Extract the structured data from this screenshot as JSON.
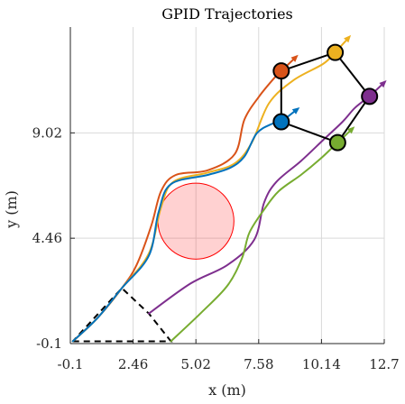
{
  "chart_data": {
    "type": "line",
    "title": "GPID Trajectories",
    "xlabel": "x (m)",
    "ylabel": "y (m)",
    "xlim": [
      -0.1,
      12.7
    ],
    "ylim": [
      -0.1,
      13.6
    ],
    "xticks": [
      -0.1,
      2.46,
      5.02,
      7.58,
      10.14,
      12.7
    ],
    "xtick_labels": [
      "-0.1",
      "2.46",
      "5.02",
      "7.58",
      "10.14",
      "12.7"
    ],
    "yticks": [
      -0.1,
      4.46,
      9.02
    ],
    "ytick_labels": [
      "-0.1",
      "4.46",
      "9.02"
    ],
    "grid": true,
    "legend": "none",
    "series": [
      {
        "color": "#d95319",
        "points": [
          [
            0,
            0
          ],
          [
            1,
            1
          ],
          [
            2,
            2.3
          ],
          [
            2.6,
            3.3
          ],
          [
            3.2,
            5
          ],
          [
            3.6,
            6.5
          ],
          [
            4.2,
            7.2
          ],
          [
            5.5,
            7.4
          ],
          [
            6.6,
            8.1
          ],
          [
            7,
            9.6
          ],
          [
            7.6,
            10.6
          ],
          [
            8.3,
            11.5
          ],
          [
            8.5,
            11.7
          ]
        ],
        "agent": [
          8.5,
          11.7
        ],
        "heading": [
          0.6,
          0.6
        ]
      },
      {
        "color": "#edb120",
        "points": [
          [
            0,
            0
          ],
          [
            1,
            1
          ],
          [
            2,
            2.3
          ],
          [
            3.1,
            3.8
          ],
          [
            3.6,
            5.8
          ],
          [
            4.1,
            6.9
          ],
          [
            5.5,
            7.3
          ],
          [
            6.6,
            7.7
          ],
          [
            7.3,
            8.6
          ],
          [
            8,
            10.3
          ],
          [
            9,
            11.3
          ],
          [
            10.2,
            12
          ],
          [
            10.7,
            12.5
          ]
        ],
        "agent": [
          10.7,
          12.5
        ],
        "heading": [
          0.6,
          0.7
        ]
      },
      {
        "color": "#0072bd",
        "points": [
          [
            0,
            0
          ],
          [
            1,
            1
          ],
          [
            2,
            2.3
          ],
          [
            3.1,
            3.7
          ],
          [
            3.5,
            5.6
          ],
          [
            4,
            6.8
          ],
          [
            5.5,
            7.2
          ],
          [
            6.4,
            7.5
          ],
          [
            7,
            8
          ],
          [
            7.5,
            9
          ],
          [
            8.1,
            9.4
          ],
          [
            8.5,
            9.5
          ]
        ],
        "agent": [
          8.5,
          9.5
        ],
        "heading": [
          0.6,
          0.5
        ]
      },
      {
        "color": "#7e2f8e",
        "points": [
          [
            3.1,
            1.2
          ],
          [
            4.8,
            2.5
          ],
          [
            6.3,
            3.3
          ],
          [
            7.4,
            4.4
          ],
          [
            7.8,
            6
          ],
          [
            8.3,
            6.9
          ],
          [
            9.3,
            7.8
          ],
          [
            10.2,
            8.7
          ],
          [
            11,
            9.5
          ],
          [
            11.5,
            10.1
          ],
          [
            12.1,
            10.6
          ]
        ],
        "agent": [
          12.1,
          10.6
        ],
        "heading": [
          0.55,
          0.55
        ]
      },
      {
        "color": "#77ac30",
        "points": [
          [
            4,
            0
          ],
          [
            5.2,
            1.2
          ],
          [
            6.3,
            2.4
          ],
          [
            6.9,
            3.6
          ],
          [
            7.2,
            4.7
          ],
          [
            7.8,
            5.7
          ],
          [
            8.4,
            6.5
          ],
          [
            9.3,
            7.2
          ],
          [
            10.1,
            7.9
          ],
          [
            10.6,
            8.4
          ],
          [
            10.8,
            8.6
          ]
        ],
        "agent": [
          10.8,
          8.6
        ],
        "heading": [
          0.5,
          0.5
        ]
      }
    ],
    "formation_edges": [
      [
        0,
        1
      ],
      [
        1,
        3
      ],
      [
        3,
        4
      ],
      [
        4,
        2
      ],
      [
        2,
        0
      ]
    ],
    "initial_formation": [
      [
        0,
        0
      ],
      [
        4,
        0
      ],
      [
        3.1,
        1.2
      ],
      [
        2,
        2.3
      ],
      [
        0,
        0
      ]
    ],
    "obstacle": {
      "center": [
        5.02,
        5.2
      ],
      "radius": 1.55,
      "color": "#ff0000"
    }
  }
}
